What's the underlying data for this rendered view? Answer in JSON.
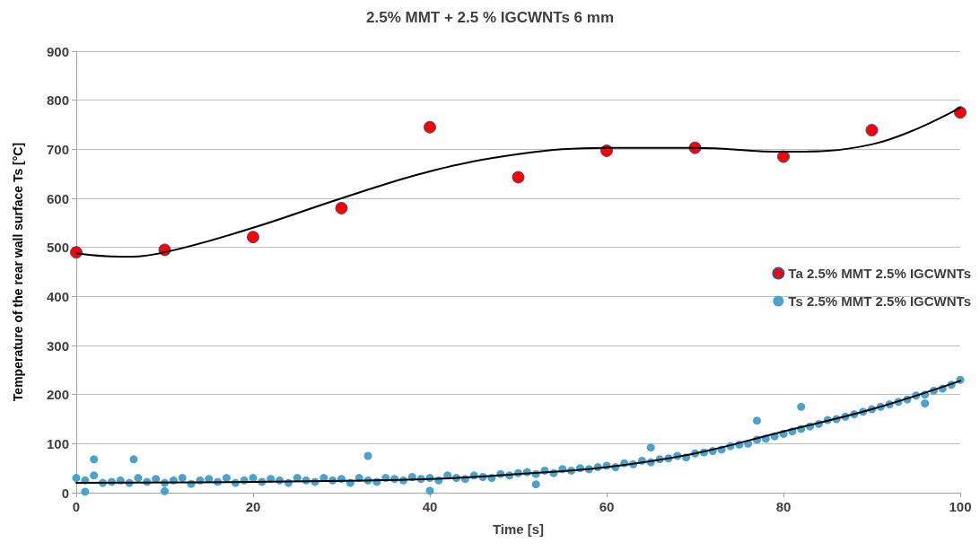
{
  "chart_data": {
    "type": "scatter",
    "title": "2.5% MMT + 2.5 % IGCWNTs 6 mm",
    "xlabel": "Time [s]",
    "ylabel": "Temperature of the rear wall surface Ts [°C]",
    "xlim": [
      0,
      100
    ],
    "xticks": [
      0,
      20,
      40,
      60,
      80,
      100
    ],
    "ylim": [
      0,
      900
    ],
    "yticks": [
      0,
      100,
      200,
      300,
      400,
      500,
      600,
      700,
      800,
      900
    ],
    "grid": "y",
    "legend": "right",
    "marker": "circle",
    "series": [
      {
        "name": "Ta 2.5% MMT 2.5% IGCWNTs",
        "color": "#ff0000",
        "x": [
          0,
          10,
          20,
          30,
          40,
          50,
          60,
          70,
          80,
          90,
          100
        ],
        "values": [
          490,
          495,
          521,
          580,
          745,
          643,
          697,
          703,
          685,
          739,
          775
        ]
      },
      {
        "name": "Ts 2.5% MMT 2.5% IGCWNTs",
        "color": "#4aa3cc",
        "x": [
          0,
          1,
          2,
          3,
          4,
          5,
          6,
          7,
          8,
          9,
          10,
          11,
          12,
          13,
          14,
          15,
          16,
          17,
          18,
          19,
          20,
          21,
          22,
          23,
          24,
          25,
          26,
          27,
          28,
          29,
          30,
          31,
          32,
          33,
          34,
          35,
          36,
          37,
          38,
          39,
          40,
          41,
          42,
          43,
          44,
          45,
          46,
          47,
          48,
          49,
          50,
          51,
          52,
          53,
          54,
          55,
          56,
          57,
          58,
          59,
          60,
          61,
          62,
          63,
          64,
          65,
          66,
          67,
          68,
          69,
          70,
          71,
          72,
          73,
          74,
          75,
          76,
          77,
          78,
          79,
          80,
          81,
          82,
          83,
          84,
          85,
          86,
          87,
          88,
          89,
          90,
          91,
          92,
          93,
          94,
          95,
          96,
          97,
          98,
          99,
          100,
          2,
          6.5,
          33,
          1,
          10,
          40,
          52,
          77,
          82,
          96,
          65
        ],
        "values": [
          30,
          25,
          35,
          20,
          22,
          25,
          20,
          30,
          22,
          28,
          20,
          25,
          30,
          18,
          25,
          28,
          22,
          30,
          20,
          25,
          30,
          22,
          28,
          25,
          20,
          30,
          25,
          22,
          30,
          25,
          28,
          20,
          30,
          25,
          22,
          30,
          28,
          25,
          32,
          28,
          30,
          25,
          35,
          30,
          28,
          35,
          32,
          30,
          38,
          35,
          40,
          42,
          38,
          45,
          40,
          48,
          45,
          50,
          48,
          52,
          55,
          52,
          60,
          58,
          65,
          62,
          68,
          70,
          75,
          72,
          80,
          82,
          85,
          88,
          95,
          98,
          100,
          108,
          110,
          115,
          120,
          125,
          130,
          135,
          140,
          148,
          150,
          155,
          160,
          165,
          170,
          175,
          180,
          185,
          190,
          198,
          200,
          208,
          212,
          220,
          230,
          68,
          68,
          75,
          2,
          3,
          4,
          17,
          147,
          175,
          182,
          92
        ]
      },
      {
        "type": "line",
        "color": "#000000",
        "marker": "none",
        "x": [
          0,
          5,
          10,
          20,
          30,
          40,
          50,
          60,
          70,
          80,
          90,
          100
        ],
        "values": [
          488,
          481,
          490,
          540,
          600,
          655,
          690,
          703,
          703,
          695,
          710,
          785
        ]
      },
      {
        "type": "line",
        "color": "#000000",
        "marker": "none",
        "x": [
          0,
          20,
          40,
          50,
          60,
          70,
          80,
          90,
          100
        ],
        "values": [
          20,
          22,
          28,
          38,
          52,
          80,
          125,
          170,
          228
        ]
      }
    ]
  }
}
